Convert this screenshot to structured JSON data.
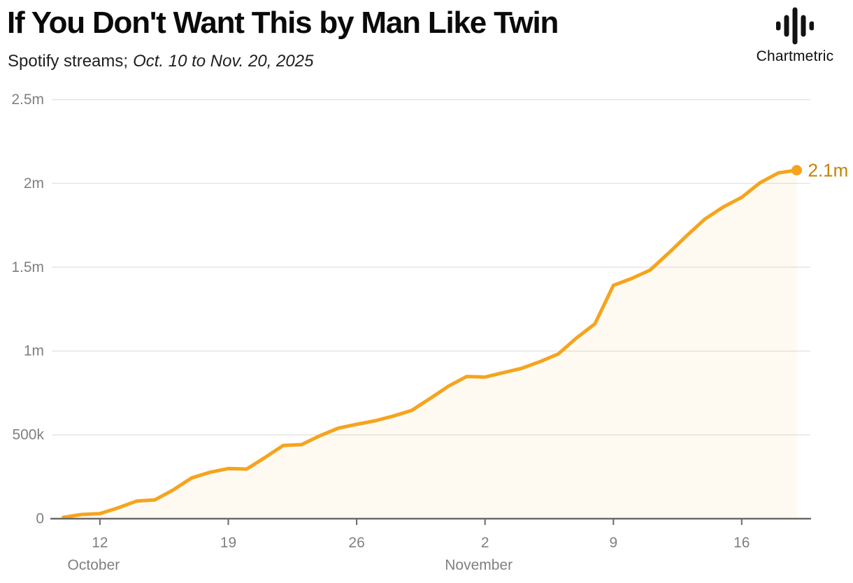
{
  "header": {
    "title": "If You Don't Want This by Man Like Twin",
    "subtitle_metric": "Spotify streams;",
    "subtitle_range": "Oct. 10 to Nov. 20, 2025",
    "brand": "Chartmetric"
  },
  "chart_data": {
    "type": "area",
    "title": "If You Don't Want This by Man Like Twin",
    "subtitle": "Spotify streams; Oct. 10 to Nov. 20, 2025",
    "series_name": "Spotify streams",
    "legend": false,
    "grid": true,
    "ylim": [
      0,
      2500000
    ],
    "x": [
      "Oct 10",
      "Oct 11",
      "Oct 12",
      "Oct 13",
      "Oct 14",
      "Oct 15",
      "Oct 16",
      "Oct 17",
      "Oct 18",
      "Oct 19",
      "Oct 20",
      "Oct 21",
      "Oct 22",
      "Oct 23",
      "Oct 24",
      "Oct 25",
      "Oct 26",
      "Oct 27",
      "Oct 28",
      "Oct 29",
      "Oct 30",
      "Oct 31",
      "Nov 1",
      "Nov 2",
      "Nov 3",
      "Nov 4",
      "Nov 5",
      "Nov 6",
      "Nov 7",
      "Nov 8",
      "Nov 9",
      "Nov 10",
      "Nov 11",
      "Nov 12",
      "Nov 13",
      "Nov 14",
      "Nov 15",
      "Nov 16",
      "Nov 17",
      "Nov 18",
      "Nov 19"
    ],
    "values": [
      8000,
      25000,
      30000,
      65000,
      105000,
      112000,
      172000,
      243000,
      277000,
      299000,
      296000,
      365000,
      437000,
      442000,
      495000,
      540000,
      563000,
      584000,
      612000,
      646000,
      717000,
      790000,
      848000,
      845000,
      871000,
      897000,
      937000,
      983000,
      1079000,
      1163000,
      1392000,
      1433000,
      1483000,
      1583000,
      1688000,
      1788000,
      1860000,
      1917000,
      2004000,
      2063000,
      2079000
    ],
    "end_point_label": "2.1m",
    "y_ticks": [
      {
        "value": 0,
        "label": "0"
      },
      {
        "value": 500000,
        "label": "500k"
      },
      {
        "value": 1000000,
        "label": "1m"
      },
      {
        "value": 1500000,
        "label": "1.5m"
      },
      {
        "value": 2000000,
        "label": "2m"
      },
      {
        "value": 2500000,
        "label": "2.5m"
      }
    ],
    "x_ticks": [
      {
        "index": 2,
        "label": "12",
        "month": "October"
      },
      {
        "index": 9,
        "label": "19"
      },
      {
        "index": 16,
        "label": "26"
      },
      {
        "index": 23,
        "label": "2",
        "month": "November"
      },
      {
        "index": 30,
        "label": "9"
      },
      {
        "index": 37,
        "label": "16"
      }
    ],
    "colors": {
      "line": "#F6A41D",
      "fill": "rgba(246,163,28,0.06)",
      "end_label": "#C28206",
      "grid": "#E8E6E2",
      "axis": "#6A6A6A",
      "tick_text": "#808080"
    }
  }
}
